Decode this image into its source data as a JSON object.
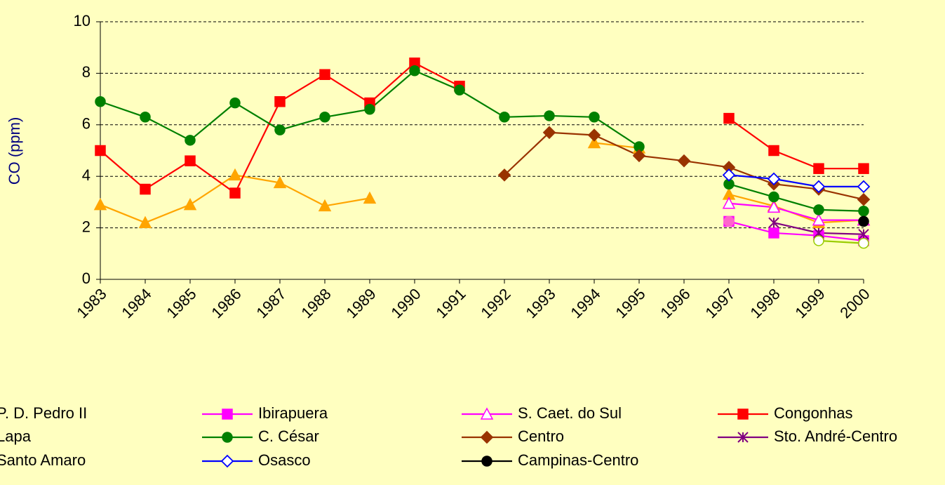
{
  "chart_data": {
    "type": "line",
    "y_label": "CO (ppm)",
    "categories": [
      "1983",
      "1984",
      "1985",
      "1986",
      "1987",
      "1988",
      "1989",
      "1990",
      "1991",
      "1992",
      "1993",
      "1994",
      "1995",
      "1996",
      "1997",
      "1998",
      "1999",
      "2000"
    ],
    "ylim": [
      0,
      10
    ],
    "yticks": [
      0,
      2,
      4,
      6,
      8,
      10
    ],
    "grid": true,
    "series": [
      {
        "name": "P. D. Pedro II",
        "color": "#ffa500",
        "marker": "triangle",
        "values": [
          2.9,
          2.2,
          2.9,
          4.05,
          3.75,
          2.85,
          3.15,
          null,
          null,
          null,
          null,
          5.3,
          5.1,
          null,
          3.3,
          2.85,
          2.2,
          2.3
        ]
      },
      {
        "name": "Ibirapuera",
        "color": "#ff00ff",
        "marker": "square",
        "values": [
          null,
          null,
          null,
          null,
          null,
          null,
          null,
          null,
          null,
          null,
          null,
          null,
          null,
          null,
          2.25,
          1.8,
          1.7,
          1.5
        ]
      },
      {
        "name": "S. Caet. do Sul",
        "color": "#ff00ff",
        "marker": "triangle-open",
        "values": [
          null,
          null,
          null,
          null,
          null,
          null,
          null,
          null,
          null,
          null,
          null,
          null,
          null,
          null,
          2.95,
          2.8,
          2.3,
          2.3
        ]
      },
      {
        "name": "Congonhas",
        "color": "#ff0000",
        "marker": "square",
        "values": [
          5.0,
          3.5,
          4.6,
          3.35,
          6.9,
          7.95,
          6.85,
          8.4,
          7.5,
          null,
          null,
          null,
          null,
          null,
          6.25,
          5.0,
          4.3,
          4.3
        ]
      },
      {
        "name": "Lapa",
        "color": "#ff66cc",
        "marker": "circle",
        "values": [
          null,
          null,
          null,
          null,
          null,
          null,
          null,
          null,
          null,
          null,
          null,
          null,
          null,
          null,
          2.25,
          null,
          null,
          null
        ]
      },
      {
        "name": "C. César",
        "color": "#008000",
        "marker": "circle",
        "values": [
          6.9,
          6.3,
          5.4,
          6.85,
          5.8,
          6.3,
          6.6,
          8.1,
          7.35,
          6.3,
          6.35,
          6.3,
          5.15,
          null,
          3.7,
          3.2,
          2.7,
          2.65
        ]
      },
      {
        "name": "Centro",
        "color": "#993300",
        "marker": "diamond",
        "values": [
          null,
          null,
          null,
          null,
          null,
          null,
          null,
          null,
          null,
          4.05,
          5.7,
          5.6,
          4.8,
          4.6,
          4.35,
          3.7,
          3.5,
          3.1
        ]
      },
      {
        "name": "Sto. André-Centro",
        "color": "#800080",
        "marker": "star",
        "values": [
          null,
          null,
          null,
          null,
          null,
          null,
          null,
          null,
          null,
          null,
          null,
          null,
          null,
          null,
          null,
          2.2,
          1.8,
          1.75
        ]
      },
      {
        "name": "Santo Amaro",
        "color": "#99cc00",
        "marker": "circle-open",
        "values": [
          null,
          null,
          null,
          null,
          null,
          null,
          null,
          null,
          null,
          null,
          null,
          null,
          null,
          null,
          null,
          null,
          1.5,
          1.4
        ]
      },
      {
        "name": "Osasco",
        "color": "#0000ff",
        "marker": "diamond-open",
        "values": [
          null,
          null,
          null,
          null,
          null,
          null,
          null,
          null,
          null,
          null,
          null,
          null,
          null,
          null,
          4.05,
          3.9,
          3.6,
          3.6
        ]
      },
      {
        "name": "Campinas-Centro",
        "color": "#000000",
        "marker": "circle",
        "values": [
          null,
          null,
          null,
          null,
          null,
          null,
          null,
          null,
          null,
          null,
          null,
          null,
          null,
          null,
          null,
          null,
          null,
          2.25
        ]
      }
    ]
  }
}
